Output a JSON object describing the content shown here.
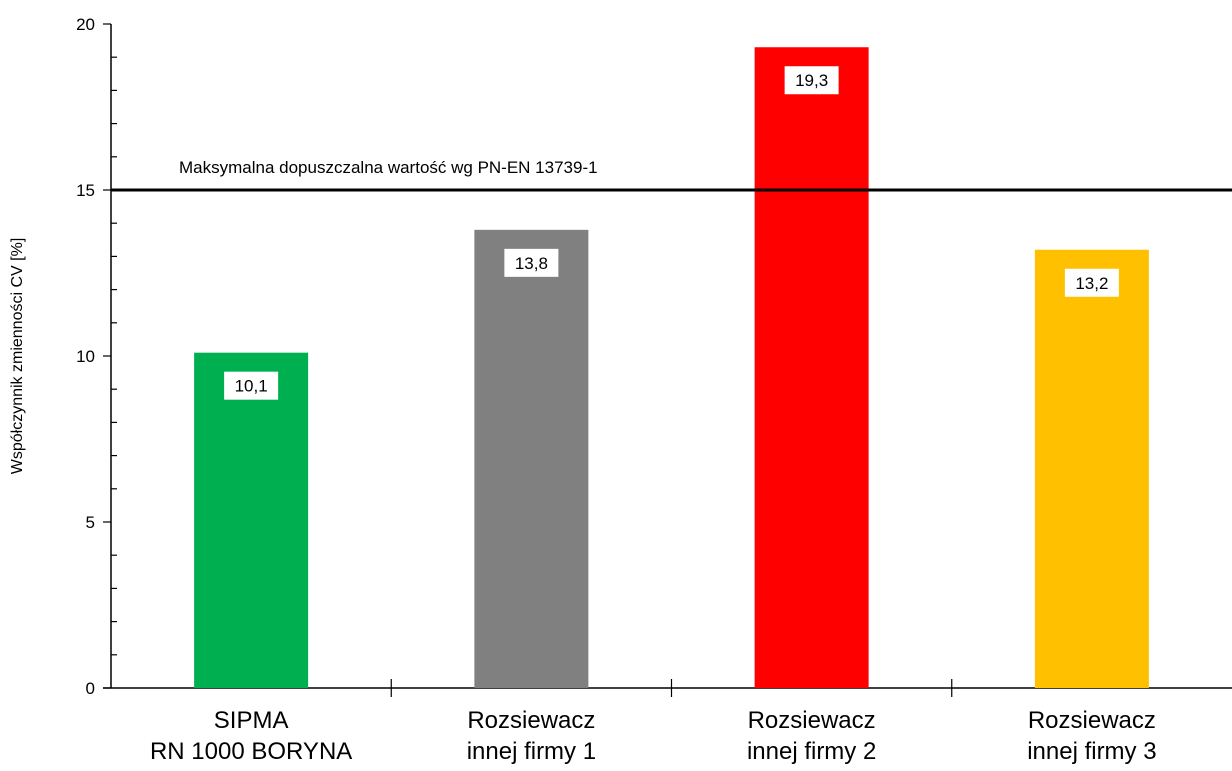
{
  "chart_data": {
    "type": "bar",
    "categories": [
      [
        "SIPMA",
        "RN 1000 BORYNA"
      ],
      [
        "Rozsiewacz",
        "innej firmy 1"
      ],
      [
        "Rozsiewacz",
        "innej firmy 2"
      ],
      [
        "Rozsiewacz",
        "innej firmy 3"
      ]
    ],
    "values": [
      10.1,
      13.8,
      19.3,
      13.2
    ],
    "value_labels": [
      "10,1",
      "13,8",
      "19,3",
      "13,2"
    ],
    "bar_colors": [
      "#00b050",
      "#808080",
      "#ff0000",
      "#ffc000"
    ],
    "ylabel": "Współczynnik zmienności CV [%]",
    "ylim": [
      0,
      20
    ],
    "yticks": [
      0,
      5,
      10,
      15,
      20
    ],
    "reference_line": {
      "value": 15,
      "label": "Maksymalna dopuszczalna wartość wg PN-EN 13739-1"
    },
    "grid": false,
    "legend": "none"
  }
}
